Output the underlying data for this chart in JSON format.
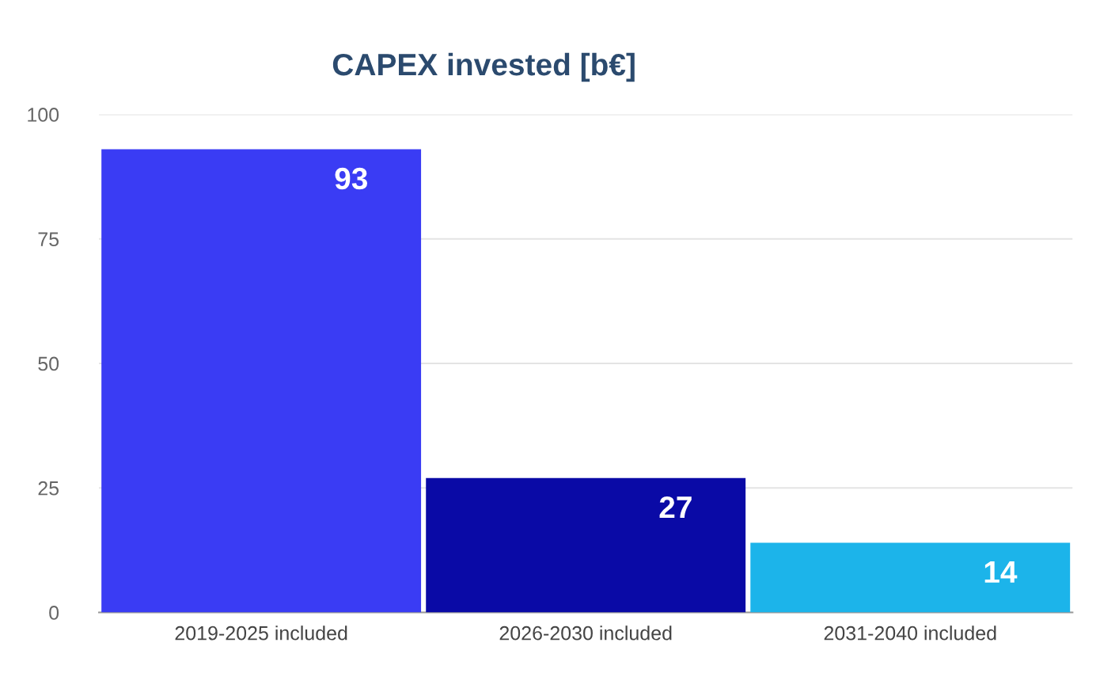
{
  "chart_data": {
    "type": "bar",
    "title": "CAPEX invested [b€]",
    "categories": [
      "2019-2025 included",
      "2026-2030 included",
      "2031-2040 included"
    ],
    "values": [
      93,
      27,
      14
    ],
    "colors": [
      "#3a3cf4",
      "#0a0aa6",
      "#1cb4ea"
    ],
    "ylim": [
      0,
      100
    ],
    "yticks": [
      0,
      25,
      50,
      75,
      100
    ],
    "grid": "y",
    "data_labels": true
  }
}
